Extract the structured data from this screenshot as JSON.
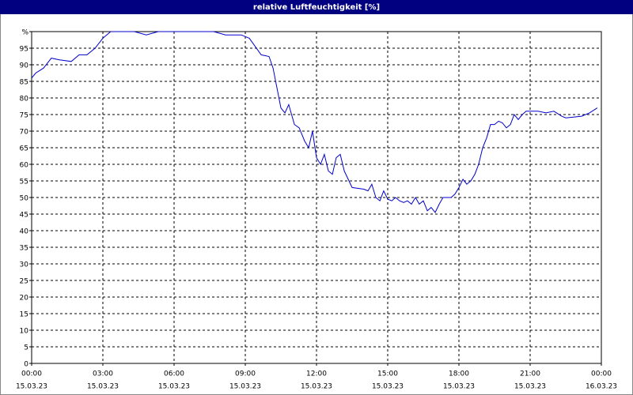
{
  "chart_data": {
    "type": "line",
    "title": "relative Luftfeuchtigkeit [%]",
    "xlim": [
      0,
      24
    ],
    "ylim": [
      0,
      100
    ],
    "xticks": [
      {
        "value": 0,
        "label": "00:00",
        "sublabel": "15.03.23"
      },
      {
        "value": 3,
        "label": "03:00",
        "sublabel": "15.03.23"
      },
      {
        "value": 6,
        "label": "06:00",
        "sublabel": "15.03.23"
      },
      {
        "value": 9,
        "label": "09:00",
        "sublabel": "15.03.23"
      },
      {
        "value": 12,
        "label": "12:00",
        "sublabel": "15.03.23"
      },
      {
        "value": 15,
        "label": "15:00",
        "sublabel": "15.03.23"
      },
      {
        "value": 18,
        "label": "18:00",
        "sublabel": "15.03.23"
      },
      {
        "value": 21,
        "label": "21:00",
        "sublabel": "15.03.23"
      },
      {
        "value": 24,
        "label": "00:00",
        "sublabel": "16.03.23"
      }
    ],
    "yticks": [
      0,
      5,
      10,
      15,
      20,
      25,
      30,
      35,
      40,
      45,
      50,
      55,
      60,
      65,
      70,
      75,
      80,
      85,
      90,
      95,
      {
        "value": 100,
        "label": "%"
      }
    ],
    "grid": true,
    "series": [
      {
        "color": "#0000cc",
        "x": [
          0,
          0.17,
          0.5,
          0.83,
          1.17,
          1.67,
          2,
          2.33,
          2.67,
          3,
          3.33,
          3.83,
          4.33,
          4.83,
          5.33,
          6,
          7.67,
          8.17,
          8.83,
          9.17,
          9.67,
          10,
          10.17,
          10.5,
          10.67,
          10.83,
          11.07,
          11.27,
          11.5,
          11.67,
          11.83,
          12,
          12.17,
          12.33,
          12.5,
          12.67,
          12.83,
          13,
          13.17,
          13.5,
          14,
          14.17,
          14.33,
          14.5,
          14.67,
          14.83,
          15,
          15.17,
          15.33,
          15.5,
          15.67,
          15.83,
          16,
          16.17,
          16.33,
          16.5,
          16.67,
          16.83,
          17,
          17.17,
          17.33,
          17.67,
          17.83,
          18,
          18.17,
          18.33,
          18.5,
          18.67,
          18.83,
          19,
          19.17,
          19.33,
          19.5,
          19.67,
          19.83,
          20,
          20.17,
          20.33,
          20.5,
          20.67,
          20.83,
          21.33,
          21.67,
          22,
          22.33,
          22.5,
          23.17,
          23.5,
          23.83
        ],
        "values": [
          86,
          87.5,
          89,
          92,
          91.5,
          91,
          93,
          93,
          95,
          98,
          100,
          100,
          100,
          99,
          100,
          100,
          100,
          99,
          99,
          98,
          93,
          92.5,
          89,
          77,
          75.5,
          78,
          72,
          71,
          67,
          65,
          70,
          62,
          60,
          63,
          58,
          57,
          62,
          63,
          58,
          53,
          52.5,
          52,
          54,
          50,
          49,
          52,
          49.5,
          49,
          50,
          49,
          48.5,
          49,
          48,
          50,
          48,
          49,
          46,
          47,
          45.5,
          48,
          50,
          50,
          51,
          53,
          55.5,
          54,
          55,
          57,
          60,
          65,
          68,
          72,
          72,
          73,
          72.5,
          71,
          72,
          75,
          73.5,
          75,
          76,
          76,
          75.5,
          76,
          74.5,
          74,
          74.5,
          75.5,
          77
        ]
      }
    ]
  }
}
